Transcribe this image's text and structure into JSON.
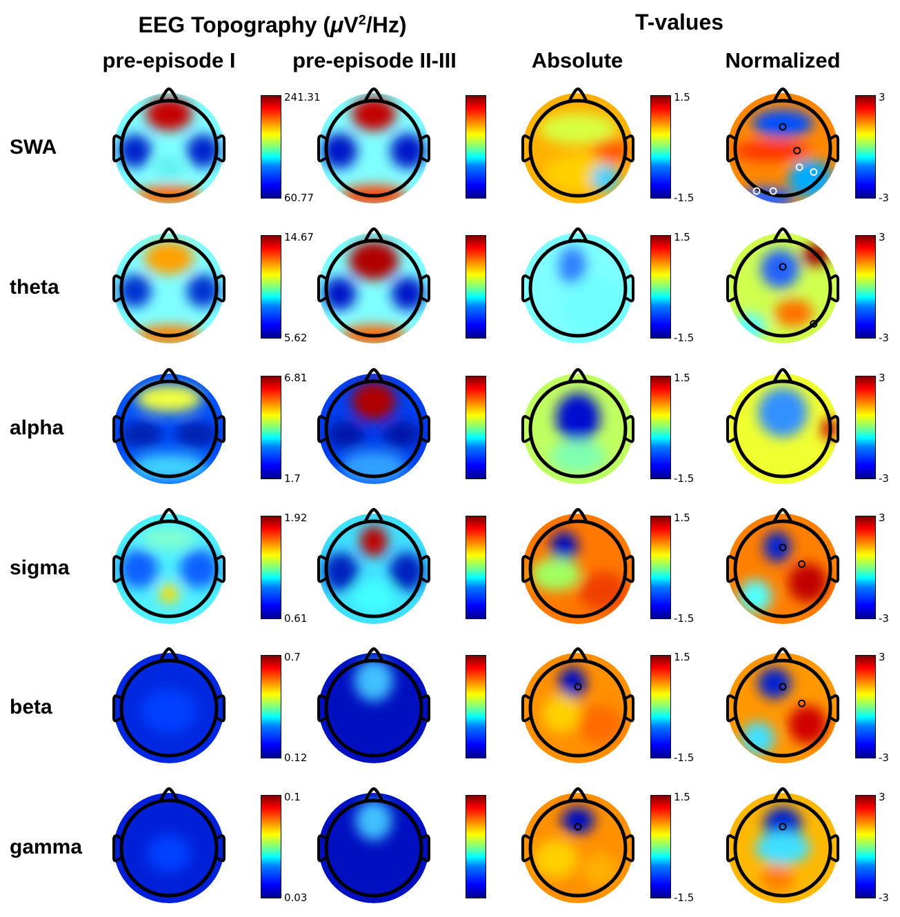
{
  "headers": {
    "main_title_prefix": "EEG Topography (",
    "main_title_mu": "μ",
    "main_title_v": "V",
    "main_title_sup": "2",
    "main_title_suffix": "/Hz)",
    "tvalues_title": "T-values",
    "col1": "pre-episode I",
    "col2": "pre-episode II-III",
    "col3": "Absolute",
    "col4": "Normalized"
  },
  "rows": [
    {
      "label": "SWA",
      "scale_max": "241.31",
      "scale_min": "60.77"
    },
    {
      "label": "theta",
      "scale_max": "14.67",
      "scale_min": "5.62"
    },
    {
      "label": "alpha",
      "scale_max": "6.81",
      "scale_min": "1.7"
    },
    {
      "label": "sigma",
      "scale_max": "1.92",
      "scale_min": "0.61"
    },
    {
      "label": "beta",
      "scale_max": "0.7",
      "scale_min": "0.12"
    },
    {
      "label": "gamma",
      "scale_max": "0.1",
      "scale_min": "0.03"
    }
  ],
  "tscales": {
    "absolute_max": "1.5",
    "absolute_min": "-1.5",
    "normalized_max": "3",
    "normalized_min": "-3"
  },
  "colormap": "jet",
  "maps": [
    [
      {
        "bg": "#7fffff",
        "blobs": [
          [
            0,
            -0.62,
            0.42,
            0.3,
            "#c80000"
          ],
          [
            -0.62,
            0.05,
            0.3,
            0.3,
            "#0022cc"
          ],
          [
            0.62,
            0.05,
            0.3,
            0.3,
            "#0022cc"
          ],
          [
            0,
            0.85,
            0.6,
            0.18,
            "#ff6a00"
          ],
          [
            0,
            0.35,
            0.25,
            0.2,
            "#5fefef"
          ]
        ]
      },
      {
        "bg": "#7fffff",
        "blobs": [
          [
            0,
            -0.62,
            0.4,
            0.3,
            "#c40000"
          ],
          [
            -0.62,
            0.05,
            0.32,
            0.32,
            "#0018c8"
          ],
          [
            0.62,
            0.05,
            0.32,
            0.32,
            "#0018c8"
          ],
          [
            0,
            0.85,
            0.6,
            0.18,
            "#ff4000"
          ]
        ]
      },
      {
        "bg": "#ffb000",
        "blobs": [
          [
            0,
            -0.35,
            0.7,
            0.28,
            "#d8ff40"
          ],
          [
            0.6,
            0.05,
            0.35,
            0.22,
            "#ff5a00"
          ],
          [
            0,
            0.45,
            0.6,
            0.35,
            "#ffd000"
          ],
          [
            0.5,
            0.55,
            0.25,
            0.25,
            "#40d0ff"
          ]
        ]
      },
      {
        "bg": "#ff8800",
        "blobs": [
          [
            0,
            -0.45,
            0.55,
            0.25,
            "#0050ff"
          ],
          [
            0.5,
            0.55,
            0.4,
            0.35,
            "#00aaff"
          ],
          [
            -0.3,
            0.9,
            0.5,
            0.2,
            "#2060ff"
          ],
          [
            -0.2,
            0.05,
            0.7,
            0.18,
            "#ff3000"
          ]
        ]
      }
    ],
    [
      {
        "bg": "#7fffff",
        "blobs": [
          [
            0,
            -0.55,
            0.45,
            0.3,
            "#ffa000"
          ],
          [
            -0.62,
            0.05,
            0.3,
            0.3,
            "#0030d0"
          ],
          [
            0.62,
            0.05,
            0.3,
            0.3,
            "#0030d0"
          ],
          [
            0,
            0.85,
            0.6,
            0.18,
            "#ff8000"
          ]
        ]
      },
      {
        "bg": "#7fffff",
        "blobs": [
          [
            0,
            -0.5,
            0.45,
            0.35,
            "#b00000"
          ],
          [
            -0.62,
            0.1,
            0.3,
            0.3,
            "#0018c8"
          ],
          [
            0.62,
            0.1,
            0.3,
            0.3,
            "#0018c8"
          ],
          [
            0,
            0.85,
            0.6,
            0.18,
            "#ff6000"
          ]
        ]
      },
      {
        "bg": "#7fffff",
        "blobs": [
          [
            -0.1,
            -0.4,
            0.25,
            0.35,
            "#3080ff"
          ],
          [
            0.3,
            0.3,
            0.6,
            0.5,
            "#70ffff"
          ]
        ]
      },
      {
        "bg": "#d0ff50",
        "blobs": [
          [
            -0.05,
            -0.35,
            0.35,
            0.35,
            "#2060ff"
          ],
          [
            0.2,
            0.45,
            0.35,
            0.25,
            "#ff7000"
          ],
          [
            0.6,
            -0.6,
            0.25,
            0.2,
            "#a00000"
          ],
          [
            -0.6,
            0.7,
            0.3,
            0.25,
            "#60ffff"
          ]
        ]
      }
    ],
    [
      {
        "bg": "#0050ff",
        "blobs": [
          [
            0,
            -0.55,
            0.6,
            0.25,
            "#f0ff40"
          ],
          [
            -0.5,
            0.1,
            0.4,
            0.25,
            "#0020b0"
          ],
          [
            0.5,
            0.1,
            0.4,
            0.25,
            "#0020b0"
          ],
          [
            0,
            0.7,
            0.7,
            0.25,
            "#40d0ff"
          ]
        ]
      },
      {
        "bg": "#0040f0",
        "blobs": [
          [
            0,
            -0.5,
            0.4,
            0.35,
            "#b00000"
          ],
          [
            -0.5,
            0.1,
            0.35,
            0.25,
            "#0018a8"
          ],
          [
            0.5,
            0.1,
            0.35,
            0.25,
            "#0018a8"
          ],
          [
            0,
            0.7,
            0.6,
            0.3,
            "#30a0ff"
          ]
        ]
      },
      {
        "bg": "#c0ff60",
        "blobs": [
          [
            0,
            -0.2,
            0.4,
            0.45,
            "#0010d0"
          ],
          [
            0,
            0.5,
            0.5,
            0.3,
            "#80ffb0"
          ]
        ]
      },
      {
        "bg": "#f0ff30",
        "blobs": [
          [
            0,
            -0.3,
            0.45,
            0.45,
            "#3090ff"
          ],
          [
            0.85,
            0,
            0.15,
            0.2,
            "#d00000"
          ]
        ]
      }
    ],
    [
      {
        "bg": "#50f0ff",
        "blobs": [
          [
            -0.55,
            0,
            0.35,
            0.35,
            "#1060ff"
          ],
          [
            0.55,
            0,
            0.35,
            0.35,
            "#1060ff"
          ],
          [
            0,
            0.45,
            0.18,
            0.18,
            "#ffe000"
          ],
          [
            0,
            -0.55,
            0.5,
            0.2,
            "#80ffd0"
          ]
        ]
      },
      {
        "bg": "#40e0ff",
        "blobs": [
          [
            0,
            -0.5,
            0.25,
            0.28,
            "#c00000"
          ],
          [
            -0.6,
            0.05,
            0.32,
            0.35,
            "#0020c0"
          ],
          [
            0.6,
            0.05,
            0.32,
            0.35,
            "#0020c0"
          ],
          [
            0,
            0.5,
            0.4,
            0.3,
            "#40ffff"
          ]
        ]
      },
      {
        "bg": "#ff7800",
        "blobs": [
          [
            -0.25,
            -0.4,
            0.25,
            0.28,
            "#0010c0"
          ],
          [
            -0.4,
            0.1,
            0.45,
            0.3,
            "#a0ff60"
          ],
          [
            0.45,
            0.4,
            0.45,
            0.35,
            "#f04000"
          ]
        ]
      },
      {
        "bg": "#ff8000",
        "blobs": [
          [
            -0.1,
            -0.4,
            0.25,
            0.28,
            "#0020d0"
          ],
          [
            0.45,
            0.25,
            0.35,
            0.35,
            "#c00000"
          ],
          [
            -0.5,
            0.5,
            0.3,
            0.3,
            "#50ffff"
          ]
        ]
      }
    ],
    [
      {
        "bg": "#0028e0",
        "blobs": [
          [
            0,
            0.05,
            0.5,
            0.4,
            "#0040ff"
          ]
        ]
      },
      {
        "bg": "#0010c0",
        "blobs": [
          [
            0,
            -0.5,
            0.22,
            0.25,
            "#e00000"
          ],
          [
            0,
            -0.5,
            0.35,
            0.38,
            "#40c0ff"
          ]
        ]
      },
      {
        "bg": "#ff9000",
        "blobs": [
          [
            -0.1,
            -0.45,
            0.25,
            0.3,
            "#0010c0"
          ],
          [
            -0.3,
            0.1,
            0.35,
            0.35,
            "#ffd000"
          ],
          [
            0.4,
            0.3,
            0.4,
            0.35,
            "#ff6a00"
          ]
        ]
      },
      {
        "bg": "#ff9800",
        "blobs": [
          [
            -0.15,
            -0.45,
            0.3,
            0.28,
            "#0020d0"
          ],
          [
            0.45,
            0.3,
            0.35,
            0.35,
            "#d00000"
          ],
          [
            -0.45,
            0.55,
            0.3,
            0.3,
            "#40e0ff"
          ]
        ]
      }
    ],
    [
      {
        "bg": "#0020d8",
        "blobs": [
          [
            0,
            0.1,
            0.4,
            0.35,
            "#0040ff"
          ]
        ]
      },
      {
        "bg": "#0010c0",
        "blobs": [
          [
            0,
            -0.5,
            0.2,
            0.23,
            "#d00000"
          ],
          [
            0,
            -0.5,
            0.33,
            0.36,
            "#40c0ff"
          ]
        ]
      },
      {
        "bg": "#ff9000",
        "blobs": [
          [
            0,
            -0.5,
            0.3,
            0.25,
            "#0010c0"
          ],
          [
            -0.4,
            0.2,
            0.4,
            0.35,
            "#ffd000"
          ],
          [
            0.4,
            0.4,
            0.3,
            0.3,
            "#ffb000"
          ]
        ]
      },
      {
        "bg": "#ffb800",
        "blobs": [
          [
            0,
            -0.4,
            0.35,
            0.35,
            "#0020d0"
          ],
          [
            -0.1,
            0.55,
            0.3,
            0.25,
            "#ff8000"
          ],
          [
            0,
            0.0,
            0.5,
            0.3,
            "#40e0ff"
          ]
        ]
      }
    ]
  ],
  "markers": [
    [
      [],
      [],
      [],
      [
        [
          0,
          -0.45,
          "#000"
        ],
        [
          0.3,
          0.05,
          "#000"
        ],
        [
          0.35,
          0.4,
          "#ffffff"
        ],
        [
          0.65,
          0.5,
          "#ffffff"
        ],
        [
          -0.2,
          0.9,
          "#ffffff"
        ],
        [
          -0.55,
          0.9,
          "#ffffff"
        ]
      ]
    ],
    [
      [],
      [],
      [],
      [
        [
          0,
          -0.45,
          "#000"
        ],
        [
          0.65,
          0.75,
          "#000"
        ]
      ]
    ],
    [
      [],
      [],
      [],
      []
    ],
    [
      [],
      [],
      [],
      [
        [
          0,
          -0.45,
          "#000"
        ],
        [
          0.4,
          -0.1,
          "#000"
        ]
      ]
    ],
    [
      [],
      [],
      [
        [
          0,
          -0.45,
          "#000"
        ]
      ],
      [
        [
          0,
          -0.45,
          "#000"
        ],
        [
          0.4,
          -0.1,
          "#000"
        ]
      ]
    ],
    [
      [],
      [],
      [
        [
          0,
          -0.45,
          "#000"
        ]
      ],
      [
        [
          0,
          -0.45,
          "#000"
        ]
      ]
    ]
  ]
}
